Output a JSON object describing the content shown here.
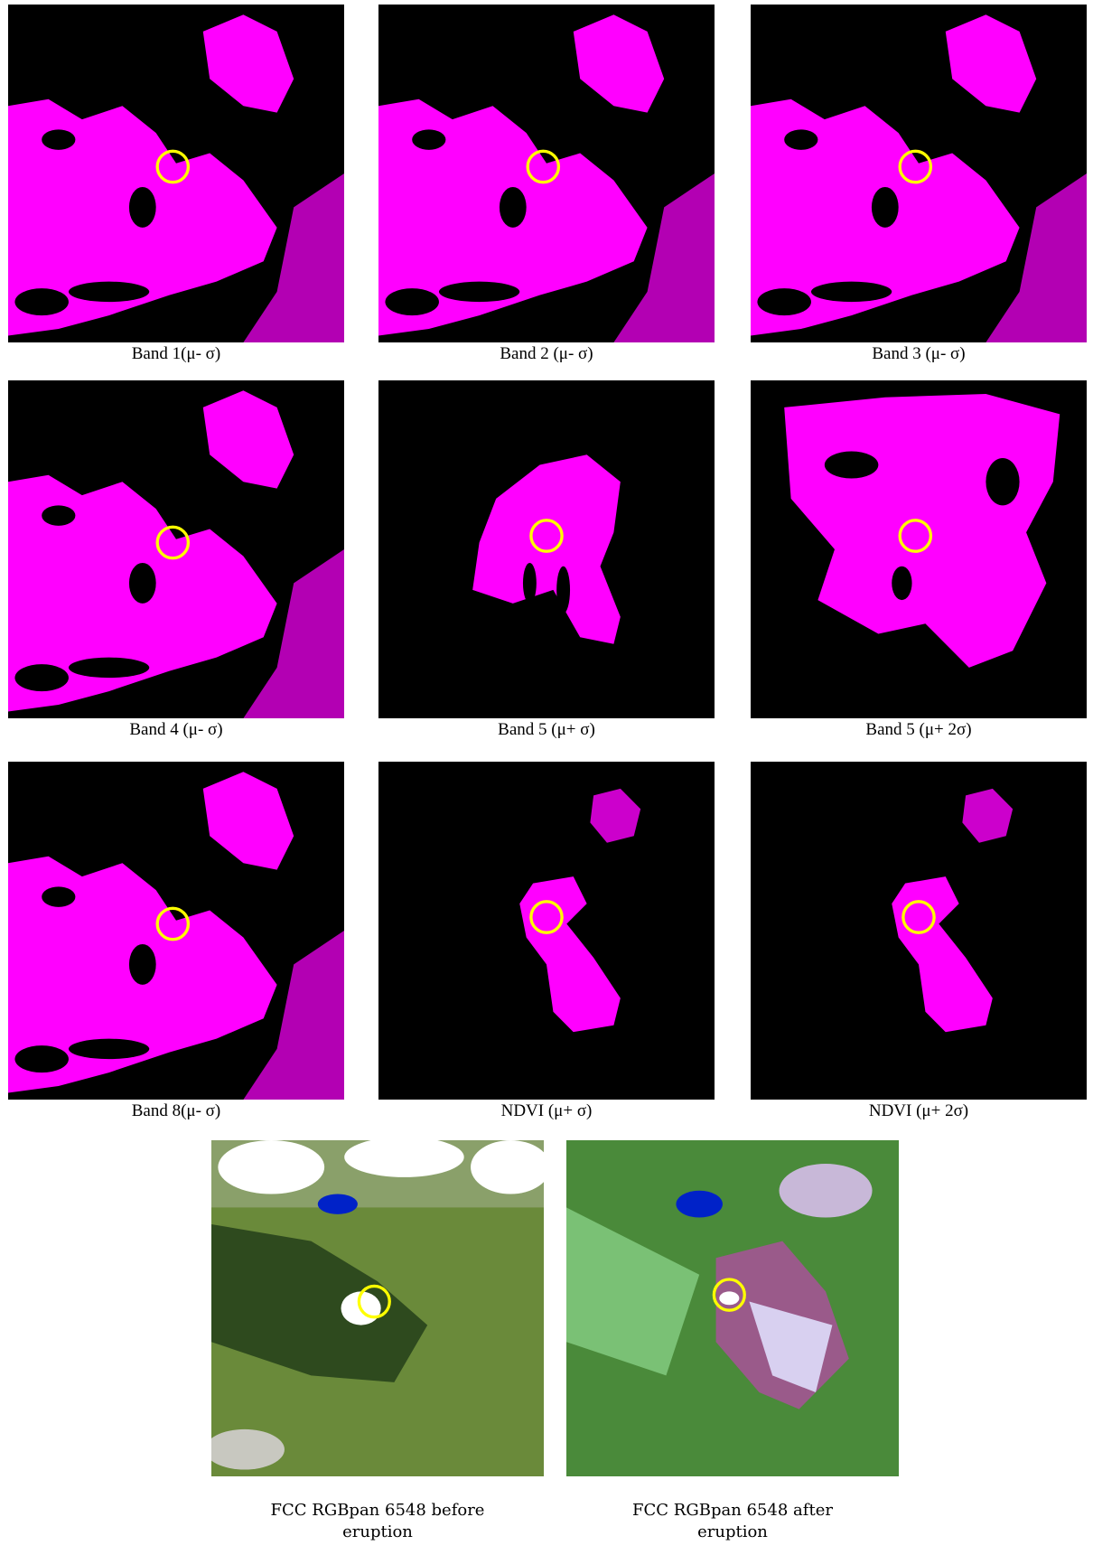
{
  "panels": [
    {
      "caption": "Band 1(μ- σ)"
    },
    {
      "caption": "Band 2 (μ- σ)"
    },
    {
      "caption": "Band 3 (μ- σ)"
    },
    {
      "caption": "Band 4 (μ- σ)"
    },
    {
      "caption": "Band 5 (μ+ σ)"
    },
    {
      "caption": "Band 5 (μ+ 2σ)"
    },
    {
      "caption": "Band 8(μ- σ)"
    },
    {
      "caption": "NDVI (μ+ σ)"
    },
    {
      "caption": "NDVI (μ+ 2σ)"
    }
  ],
  "fcc": [
    {
      "caption": "FCC RGBpan 6548 before eruption"
    },
    {
      "caption": "FCC RGBpan 6548 after eruption"
    }
  ]
}
